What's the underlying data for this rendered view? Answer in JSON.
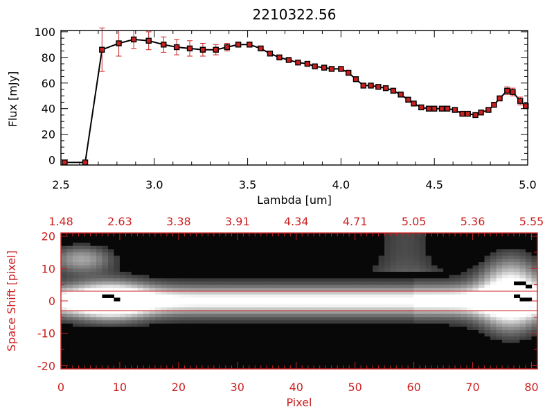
{
  "chart_data": [
    {
      "type": "line",
      "title": "2210322.56",
      "xlabel": "Lambda [um]",
      "ylabel": "Flux [mJy]",
      "xlim": [
        2.5,
        5.0
      ],
      "ylim": [
        -4,
        101
      ],
      "x_ticks": [
        "2.5",
        "3.0",
        "3.5",
        "4.0",
        "4.5",
        "5.0"
      ],
      "y_ticks": [
        "0",
        "20",
        "40",
        "60",
        "80",
        "100"
      ],
      "colors": {
        "line": "#000000",
        "marker": "#cc2020",
        "errorbar": "#cc2020",
        "axes": "#000000"
      },
      "grid": false,
      "series": [
        {
          "x": [
            2.52,
            2.63,
            2.72,
            2.81,
            2.89,
            2.97,
            3.05,
            3.12,
            3.19,
            3.26,
            3.33,
            3.39,
            3.45,
            3.51,
            3.57,
            3.62,
            3.67,
            3.72,
            3.77,
            3.82,
            3.86,
            3.91,
            3.95,
            4.0,
            4.04,
            4.08,
            4.12,
            4.16,
            4.2,
            4.24,
            4.28,
            4.32,
            4.36,
            4.39,
            4.43,
            4.47,
            4.5,
            4.54,
            4.57,
            4.61,
            4.65,
            4.68,
            4.72,
            4.75,
            4.79,
            4.82,
            4.85,
            4.89,
            4.92,
            4.96,
            4.99
          ],
          "y": [
            -2,
            -2,
            86,
            91,
            94,
            93,
            90,
            88,
            87,
            86,
            86,
            88,
            90,
            90,
            87,
            83,
            80,
            78,
            76,
            75,
            73,
            72,
            71,
            71,
            68,
            63,
            58,
            58,
            57,
            56,
            54,
            51,
            47,
            44,
            41,
            40,
            40,
            40,
            40,
            39,
            36,
            36,
            35,
            37,
            39,
            43,
            48,
            54,
            53,
            46,
            42
          ],
          "yerr": [
            0,
            0,
            17,
            10,
            7,
            7,
            6,
            6,
            6,
            5,
            4,
            3,
            2,
            2,
            1,
            1,
            1,
            1,
            1,
            1,
            1,
            1,
            1,
            1,
            1,
            1,
            1,
            1,
            1,
            1,
            1,
            1,
            1,
            1,
            1,
            1,
            1,
            1,
            1,
            1,
            1,
            1,
            1,
            1,
            1,
            1,
            2,
            3,
            3,
            3,
            2
          ]
        }
      ]
    },
    {
      "type": "heatmap",
      "xlabel": "Pixel",
      "ylabel": "Space Shift [pixel]",
      "xlim": [
        0,
        81
      ],
      "ylim": [
        -21,
        21
      ],
      "x_ticks": [
        "0",
        "10",
        "20",
        "30",
        "40",
        "50",
        "60",
        "70",
        "80"
      ],
      "top_x_ticks": [
        "1.48",
        "2.63",
        "3.38",
        "3.91",
        "4.34",
        "4.71",
        "5.05",
        "5.36",
        "5.55"
      ],
      "y_ticks": [
        "-20",
        "-10",
        "0",
        "10",
        "20"
      ],
      "aperture_lines": [
        3,
        -3
      ],
      "colormap": "grayscale",
      "colors": {
        "axes": "#cc2020",
        "aperture": "#cc2020",
        "labels": "#cc2020"
      }
    }
  ]
}
